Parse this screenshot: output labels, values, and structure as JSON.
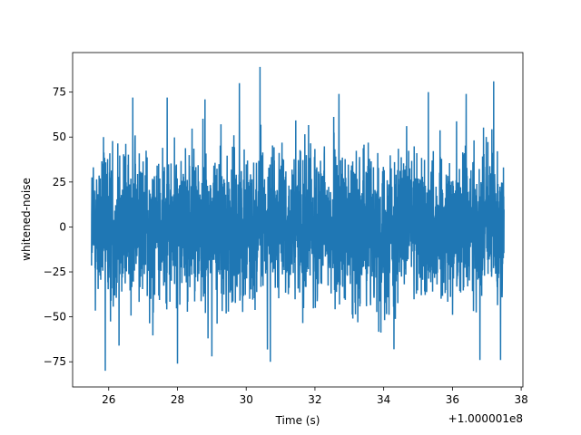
{
  "chart_data": {
    "type": "line",
    "title": "",
    "xlabel": "Time (s)",
    "ylabel": "whitened-noise",
    "x_offset_label": "+1.000001e8",
    "xlim": [
      24.95,
      38.05
    ],
    "ylim": [
      -89,
      97
    ],
    "x_ticks": [
      26,
      28,
      30,
      32,
      34,
      36,
      38
    ],
    "y_ticks": [
      -75,
      -50,
      -25,
      0,
      25,
      50,
      75
    ],
    "grid": false,
    "legend": "none",
    "line_color": "#1f77b4",
    "series": [
      {
        "x_start": 25.5,
        "x_end": 37.5,
        "typical_range": [
          -45,
          52
        ],
        "max": 89,
        "min": -80,
        "peaks": [
          [
            30.4,
            89
          ],
          [
            29.8,
            80
          ],
          [
            37.2,
            81
          ],
          [
            26.7,
            72
          ],
          [
            27.7,
            72
          ],
          [
            28.8,
            71
          ],
          [
            32.7,
            74
          ],
          [
            35.3,
            75
          ],
          [
            36.4,
            74
          ]
        ],
        "troughs": [
          [
            25.9,
            -80
          ],
          [
            28.0,
            -76
          ],
          [
            26.3,
            -66
          ],
          [
            30.7,
            -75
          ],
          [
            36.8,
            -74
          ],
          [
            37.4,
            -74
          ],
          [
            34.3,
            -68
          ],
          [
            29.0,
            -72
          ]
        ]
      }
    ]
  }
}
